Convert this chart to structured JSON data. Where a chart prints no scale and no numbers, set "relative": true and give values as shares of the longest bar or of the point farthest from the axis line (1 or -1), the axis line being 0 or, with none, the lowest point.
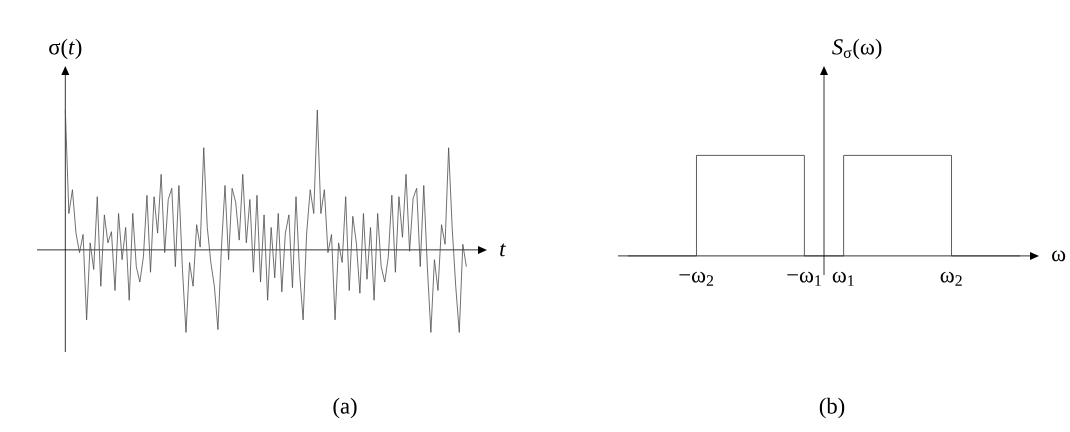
{
  "chart_data": [
    {
      "type": "line",
      "relative": true,
      "color": "#4d4d4d",
      "ylabel": "σ(*t*)",
      "xlabel": "*t*",
      "tick_labels": false,
      "annotations": [
        "(a)"
      ],
      "categories": [
        null,
        null,
        null,
        null,
        null,
        null,
        null,
        null,
        null,
        null,
        null,
        null,
        null,
        null,
        null,
        null,
        null,
        null,
        null,
        null,
        null,
        null,
        null,
        null,
        null,
        null,
        null,
        null,
        null,
        null,
        null,
        null,
        null,
        null,
        null,
        null,
        null,
        null,
        null,
        null,
        null,
        null,
        null,
        null,
        null,
        null,
        null,
        null,
        null,
        null,
        null,
        null,
        null,
        null,
        null,
        null,
        null,
        null,
        null,
        null,
        null,
        null,
        null,
        null,
        null,
        null,
        null,
        null,
        null,
        null,
        null,
        null,
        null,
        null,
        null,
        null,
        null,
        null,
        null,
        null,
        null,
        null,
        null,
        null,
        null,
        null,
        null,
        null,
        null,
        null,
        null,
        null,
        null,
        null,
        null,
        null,
        null,
        null,
        null,
        null,
        null,
        null,
        null,
        null,
        null,
        null,
        null,
        null,
        null,
        null,
        null,
        null,
        null,
        null
      ],
      "values": [
        1.0,
        0.26,
        0.43,
        0.12,
        -0.02,
        0.11,
        -0.5,
        0.05,
        -0.14,
        0.38,
        -0.26,
        0.25,
        0.05,
        0.13,
        -0.29,
        0.26,
        -0.07,
        0.16,
        -0.36,
        0.26,
        -0.12,
        -0.23,
        -0.05,
        0.39,
        -0.16,
        0.38,
        0.12,
        0.54,
        -0.02,
        0.36,
        0.44,
        -0.12,
        0.46,
        -0.14,
        -0.59,
        -0.09,
        -0.26,
        0.18,
        0.02,
        0.73,
        0.16,
        -0.09,
        -0.26,
        -0.57,
        0.02,
        0.46,
        -0.07,
        0.44,
        0.34,
        0.07,
        0.54,
        0.05,
        0.36,
        -0.16,
        0.39,
        -0.23,
        0.25,
        -0.36,
        0.16,
        -0.2,
        0.26,
        -0.3,
        0.12,
        0.25,
        -0.27,
        0.38,
        -0.16,
        -0.5,
        0.12,
        0.43,
        0.26,
        1.0,
        0.26,
        0.43,
        -0.02,
        0.11,
        -0.5,
        0.05,
        -0.09,
        0.38,
        -0.29,
        0.24,
        0.05,
        -0.31,
        0.26,
        -0.21,
        0.16,
        -0.36,
        0.26,
        -0.12,
        -0.23,
        -0.05,
        0.39,
        -0.16,
        0.38,
        0.09,
        0.54,
        -0.01,
        0.37,
        0.44,
        -0.12,
        0.46,
        -0.12,
        -0.59,
        -0.07,
        -0.29,
        0.18,
        0.04,
        0.73,
        0.16,
        -0.26,
        -0.59,
        0.04,
        -0.12
      ]
    },
    {
      "type": "step",
      "relative": true,
      "color": "#333333",
      "ylabel": "*S*$_{σ}$(ω)",
      "xlabel": "ω",
      "tick_labels": "x",
      "annotations": [
        "(b)"
      ],
      "categories": [
        null,
        null,
        null,
        null,
        null,
        null,
        null,
        "−ω$_{2}$",
        null,
        null,
        null,
        null,
        null,
        null,
        null,
        null,
        null,
        null,
        "−ω$_{1}$",
        null,
        null,
        null,
        "ω$_{1}$",
        null,
        null,
        null,
        null,
        null,
        null,
        null,
        null,
        null,
        null,
        "ω$_{2}$",
        null,
        null,
        null,
        null,
        null,
        null,
        null
      ],
      "values": [
        0,
        0,
        0,
        0,
        0,
        0,
        0,
        1,
        1,
        1,
        1,
        1,
        1,
        1,
        1,
        1,
        1,
        1,
        0,
        0,
        0,
        0,
        1,
        1,
        1,
        1,
        1,
        1,
        1,
        1,
        1,
        1,
        1,
        0,
        0,
        0,
        0,
        0,
        0,
        0,
        0
      ]
    }
  ]
}
